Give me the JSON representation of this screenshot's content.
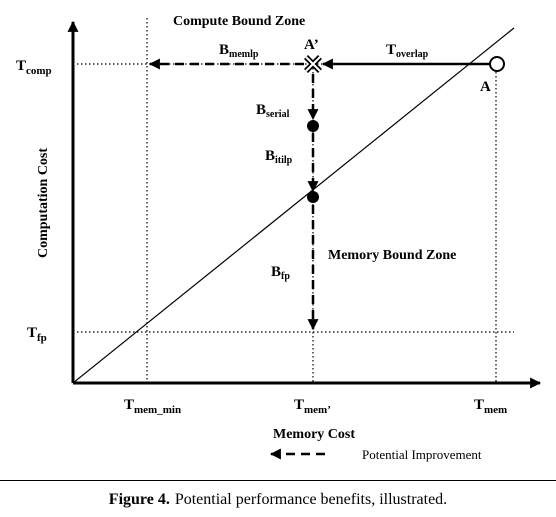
{
  "diagram": {
    "zones": {
      "compute": "Compute Bound Zone",
      "memory": "Memory Bound Zone"
    },
    "axes": {
      "y_label": "Computation Cost",
      "x_label": "Memory Cost"
    },
    "y_ticks": {
      "t_comp": {
        "main": "T",
        "sub": "comp"
      },
      "t_fp": {
        "main": "T",
        "sub": "fp"
      }
    },
    "x_ticks": {
      "t_mem_min": {
        "main": "T",
        "sub": "mem_min"
      },
      "t_mem_prime": {
        "main": "T",
        "sub": "mem’"
      },
      "t_mem": {
        "main": "T",
        "sub": "mem"
      }
    },
    "points": {
      "a": "A",
      "a_prime": "A’"
    },
    "arrow_labels": {
      "b_memlp": {
        "main": "B",
        "sub": "memlp"
      },
      "t_overlap": {
        "main": "T",
        "sub": "overlap"
      },
      "b_serial": {
        "main": "B",
        "sub": "serial"
      },
      "b_itilp": {
        "main": "B",
        "sub": "itilp"
      },
      "b_fp": {
        "main": "B",
        "sub": "fp"
      }
    },
    "legend": {
      "potential_improvement": "Potential Improvement"
    }
  },
  "caption": {
    "label": "Figure 4.",
    "text": "Potential performance benefits, illustrated."
  }
}
